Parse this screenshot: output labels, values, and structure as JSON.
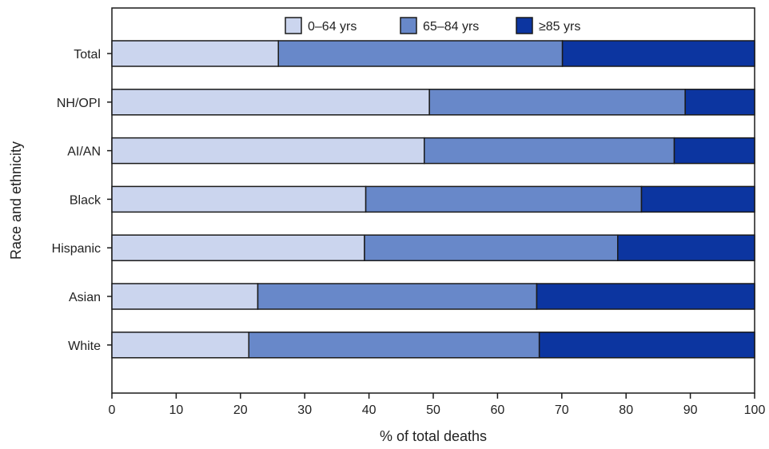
{
  "chart_data": {
    "type": "bar",
    "orientation": "horizontal",
    "stacked": true,
    "title": "",
    "xlabel": "% of total deaths",
    "ylabel": "Race and ethnicity",
    "xlim": [
      0,
      100
    ],
    "xticks": [
      "0",
      "10",
      "20",
      "30",
      "40",
      "50",
      "60",
      "70",
      "80",
      "90",
      "100"
    ],
    "categories": [
      "Total",
      "NH/OPI",
      "AI/AN",
      "Black",
      "Hispanic",
      "Asian",
      "White"
    ],
    "series": [
      {
        "name": "0–64 yrs",
        "color": "#cbd5ee",
        "values": [
          25.9,
          49.4,
          48.6,
          39.5,
          39.3,
          22.7,
          21.3
        ]
      },
      {
        "name": "65–84 yrs",
        "color": "#6888c9",
        "values": [
          44.2,
          39.8,
          38.9,
          42.9,
          39.4,
          43.4,
          45.2
        ]
      },
      {
        "name": "≥85 yrs",
        "color": "#0c35a0",
        "values": [
          29.9,
          10.8,
          12.5,
          17.6,
          21.3,
          33.9,
          33.5
        ]
      }
    ],
    "legend": {
      "position": "top-center"
    },
    "grid": false
  }
}
